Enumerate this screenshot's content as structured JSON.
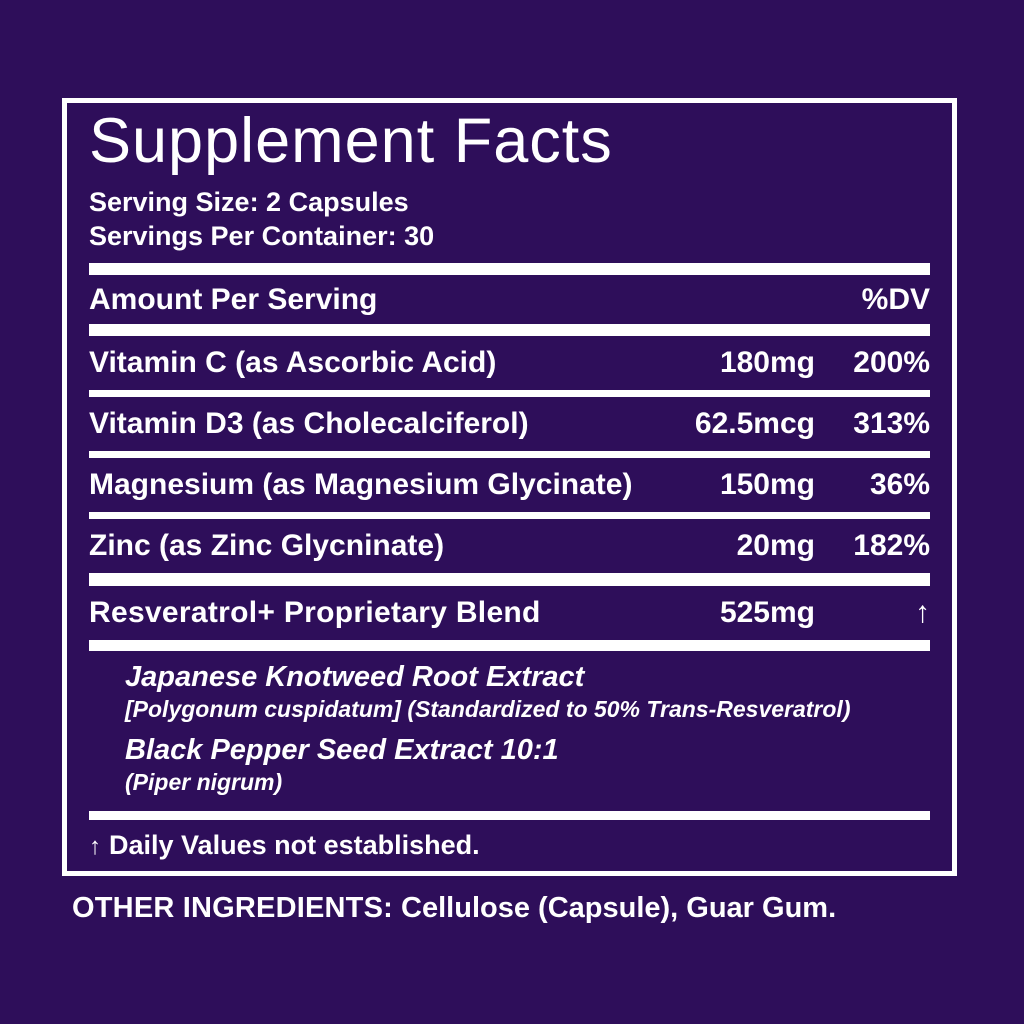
{
  "colors": {
    "background": "#2e0e5a",
    "text": "#ffffff",
    "rule": "#ffffff"
  },
  "label": {
    "title": "Supplement Facts",
    "serving_size": "Serving Size: 2 Capsules",
    "servings_per_container": "Servings Per Container: 30",
    "header": {
      "amount_label": "Amount Per Serving",
      "dv_label": "%DV"
    },
    "nutrients": [
      {
        "name": "Vitamin C (as Ascorbic Acid)",
        "amount": "180mg",
        "dv": "200%"
      },
      {
        "name": "Vitamin D3 (as Cholecalciferol)",
        "amount": "62.5mcg",
        "dv": "313%"
      },
      {
        "name": "Magnesium (as Magnesium Glycinate)",
        "amount": "150mg",
        "dv": "36%"
      },
      {
        "name": "Zinc (as Zinc Glycninate)",
        "amount": "20mg",
        "dv": "182%"
      }
    ],
    "blend": {
      "name": "Resveratrol+ Proprietary Blend",
      "amount": "525mg",
      "dv_symbol": "↑",
      "items": [
        {
          "name": "Japanese Knotweed Root Extract",
          "detail": "[Polygonum cuspidatum] (Standardized to 50% Trans-Resveratrol)"
        },
        {
          "name": "Black Pepper Seed Extract 10:1",
          "detail": "(Piper nigrum)"
        }
      ]
    },
    "footnote": {
      "symbol": "↑",
      "text": "Daily Values not established."
    }
  },
  "other_ingredients": {
    "label": "OTHER INGREDIENTS:",
    "text": " Cellulose (Capsule), Guar Gum."
  }
}
